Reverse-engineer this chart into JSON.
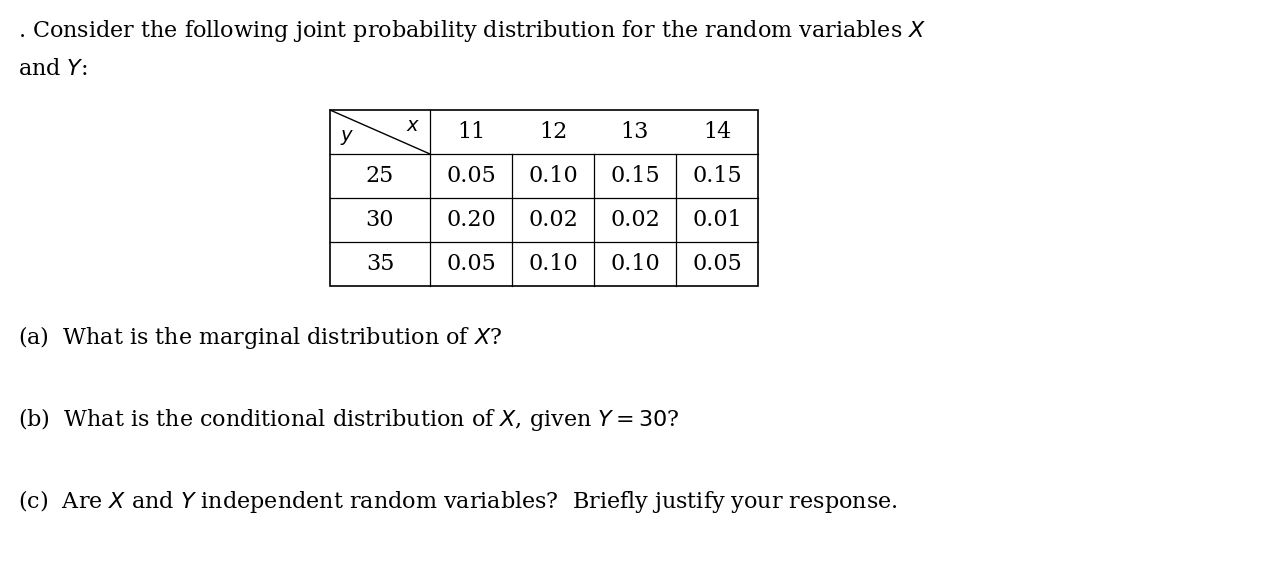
{
  "title_line1": ". Consider the following joint probability distribution for the random variables $X$",
  "title_line2": "and $Y$:",
  "x_vals": [
    "11",
    "12",
    "13",
    "14"
  ],
  "y_vals": [
    "25",
    "30",
    "35"
  ],
  "table_data": [
    [
      "0.05",
      "0.10",
      "0.15",
      "0.15"
    ],
    [
      "0.20",
      "0.02",
      "0.02",
      "0.01"
    ],
    [
      "0.05",
      "0.10",
      "0.10",
      "0.05"
    ]
  ],
  "question_a": "(a)  What is the marginal distribution of $X$?",
  "question_b": "(b)  What is the conditional distribution of $X$, given $Y = 30$?",
  "question_c": "(c)  Are $X$ and $Y$ independent random variables?  Briefly justify your response.",
  "bg_color": "#ffffff",
  "text_color": "#000000",
  "body_fontsize": 16,
  "table_fontsize": 16,
  "header_diag_fontsize": 14
}
